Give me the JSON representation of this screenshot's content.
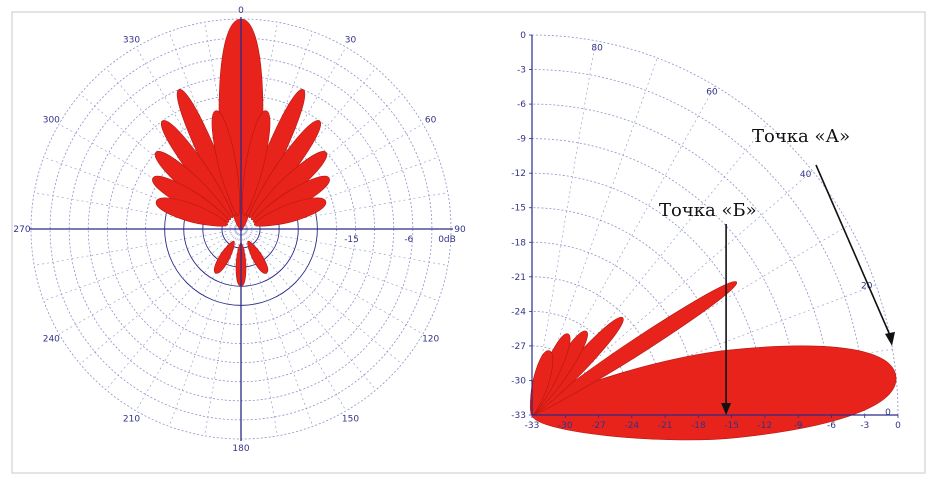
{
  "chart_data": [
    {
      "type": "polar",
      "title": "",
      "angle_ticks": [
        "0",
        "30",
        "60",
        "90",
        "120",
        "150",
        "180",
        "210",
        "240",
        "270",
        "300",
        "330"
      ],
      "radial_ticks": [
        "-15",
        "-6",
        "0dB"
      ],
      "radial_range_db": [
        -33,
        0
      ],
      "grid": true,
      "colors": {
        "fill": "#e8231c",
        "grid": "#8a93c8",
        "axis": "#2a2a8a",
        "text": "#33338a"
      },
      "lobes": [
        {
          "angle": 0,
          "level_db": 0
        },
        {
          "angle": 24,
          "level_db": -9
        },
        {
          "angle": -24,
          "level_db": -9
        },
        {
          "angle": 36,
          "level_db": -12
        },
        {
          "angle": -36,
          "level_db": -12
        },
        {
          "angle": 48,
          "level_db": -15
        },
        {
          "angle": -48,
          "level_db": -15
        },
        {
          "angle": 60,
          "level_db": -17
        },
        {
          "angle": -60,
          "level_db": -17
        },
        {
          "angle": 72,
          "level_db": -19
        },
        {
          "angle": -72,
          "level_db": -19
        },
        {
          "angle": 12,
          "level_db": -14
        },
        {
          "angle": -12,
          "level_db": -14
        },
        {
          "angle": 180,
          "level_db": -24
        },
        {
          "angle": 150,
          "level_db": -25
        },
        {
          "angle": -150,
          "level_db": -25
        }
      ]
    },
    {
      "type": "polar-quadrant",
      "title": "",
      "angle_ticks": [
        "80",
        "60",
        "40",
        "20",
        "0"
      ],
      "x_ticks": [
        "-33",
        "-30",
        "-27",
        "-24",
        "-21",
        "-18",
        "-15",
        "-12",
        "-9",
        "-6",
        "-3",
        "0"
      ],
      "y_ticks": [
        "0",
        "-3",
        "-6",
        "-9",
        "-12",
        "-15",
        "-18",
        "-21",
        "-24",
        "-27",
        "-30",
        "-33"
      ],
      "radial_range_db": [
        -33,
        0
      ],
      "grid": true,
      "colors": {
        "fill": "#e8231c",
        "grid": "#8a93c8",
        "axis": "#2a2a8a",
        "text": "#33338a",
        "arrow": "#111111"
      },
      "lobes": [
        {
          "angle": 6,
          "level_db": 0
        },
        {
          "angle": 33,
          "level_db": -11
        },
        {
          "angle": 47,
          "level_db": -21
        },
        {
          "angle": 57,
          "level_db": -24
        },
        {
          "angle": 66,
          "level_db": -25
        },
        {
          "angle": 75,
          "level_db": -27
        }
      ],
      "annotations": [
        {
          "label": "Точка «А»",
          "x": 0,
          "y": -27
        },
        {
          "label": "Точка «Б»",
          "x": -15.5,
          "y": -33
        }
      ]
    }
  ]
}
